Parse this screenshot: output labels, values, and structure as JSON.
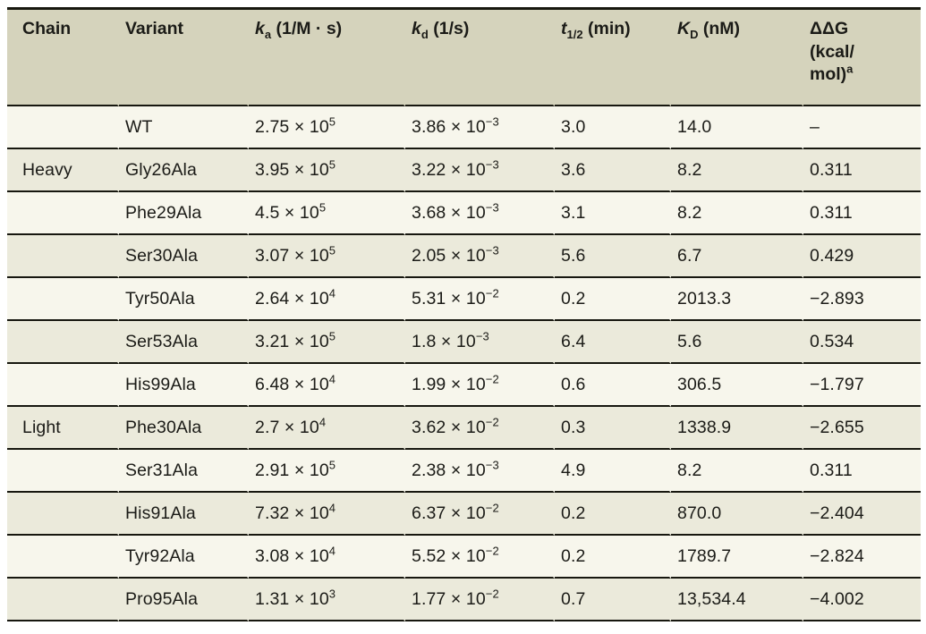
{
  "colors": {
    "header_bg": "#d5d3bc",
    "row_light": "#f7f6ec",
    "row_dark": "#ebeadb",
    "rule": "#17170f",
    "text": "#1b1b17"
  },
  "table": {
    "columns": [
      {
        "label": "Chain"
      },
      {
        "label": "Variant"
      },
      {
        "base": "k",
        "sub": "a",
        "rest": " (1/M · s)"
      },
      {
        "base": "k",
        "sub": "d",
        "rest": " (1/s)"
      },
      {
        "base": "t",
        "sub": "1/2",
        "rest": " (min)"
      },
      {
        "base": "K",
        "sub": "D",
        "rest": " (nM)"
      },
      {
        "line1": "ΔΔG",
        "line2": "(kcal/",
        "line3": "mol)",
        "sup": "a"
      }
    ],
    "keys": [
      "chain",
      "variant",
      "ka",
      "kd",
      "t_half",
      "kD",
      "ddG"
    ],
    "rows": [
      {
        "chain": "",
        "variant": "WT",
        "ka": "2.75 × 10^5",
        "kd": "3.86 × 10^−3",
        "t_half": "3.0",
        "kD": "14.0",
        "ddG": "–"
      },
      {
        "chain": "Heavy",
        "variant": "Gly26Ala",
        "ka": "3.95 × 10^5",
        "kd": "3.22 × 10^−3",
        "t_half": "3.6",
        "kD": "8.2",
        "ddG": "0.311"
      },
      {
        "chain": "",
        "variant": "Phe29Ala",
        "ka": "4.5 × 10^5",
        "kd": "3.68 × 10^−3",
        "t_half": "3.1",
        "kD": "8.2",
        "ddG": "0.311"
      },
      {
        "chain": "",
        "variant": "Ser30Ala",
        "ka": "3.07 × 10^5",
        "kd": "2.05 × 10^−3",
        "t_half": "5.6",
        "kD": "6.7",
        "ddG": "0.429"
      },
      {
        "chain": "",
        "variant": "Tyr50Ala",
        "ka": "2.64 × 10^4",
        "kd": "5.31 × 10^−2",
        "t_half": "0.2",
        "kD": "2013.3",
        "ddG": "−2.893"
      },
      {
        "chain": "",
        "variant": "Ser53Ala",
        "ka": "3.21 × 10^5",
        "kd": "1.8 × 10^−3",
        "t_half": "6.4",
        "kD": "5.6",
        "ddG": "0.534"
      },
      {
        "chain": "",
        "variant": "His99Ala",
        "ka": "6.48 × 10^4",
        "kd": "1.99 × 10^−2",
        "t_half": "0.6",
        "kD": "306.5",
        "ddG": "−1.797"
      },
      {
        "chain": "Light",
        "variant": "Phe30Ala",
        "ka": "2.7 × 10^4",
        "kd": "3.62 × 10^−2",
        "t_half": "0.3",
        "kD": "1338.9",
        "ddG": "−2.655"
      },
      {
        "chain": "",
        "variant": "Ser31Ala",
        "ka": "2.91 × 10^5",
        "kd": "2.38 × 10^−3",
        "t_half": "4.9",
        "kD": "8.2",
        "ddG": "0.311"
      },
      {
        "chain": "",
        "variant": "His91Ala",
        "ka": "7.32 × 10^4",
        "kd": "6.37 × 10^−2",
        "t_half": "0.2",
        "kD": "870.0",
        "ddG": "−2.404"
      },
      {
        "chain": "",
        "variant": "Tyr92Ala",
        "ka": "3.08 × 10^4",
        "kd": "5.52 × 10^−2",
        "t_half": "0.2",
        "kD": "1789.7",
        "ddG": "−2.824"
      },
      {
        "chain": "",
        "variant": "Pro95Ala",
        "ka": "1.31 × 10^3",
        "kd": "1.77 × 10^−2",
        "t_half": "0.7",
        "kD": "13,534.4",
        "ddG": "−4.002"
      }
    ]
  }
}
